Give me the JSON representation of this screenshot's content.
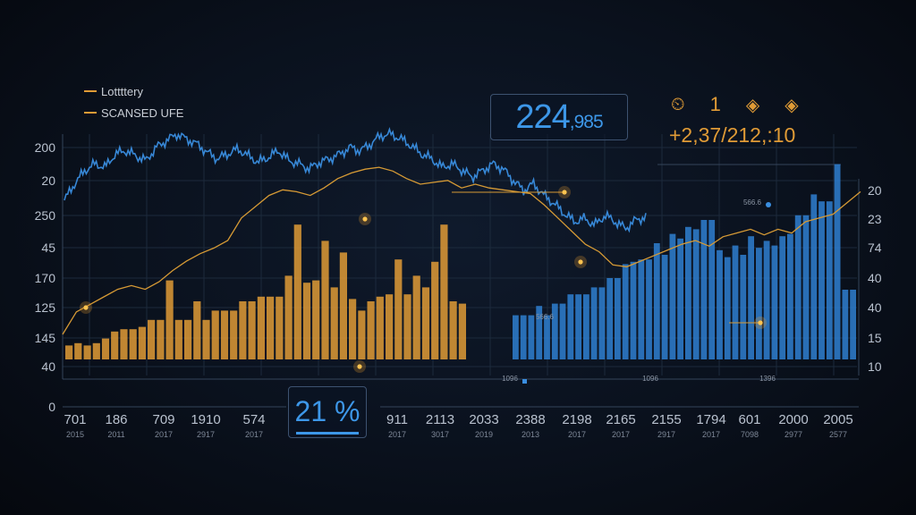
{
  "legend": [
    {
      "label": "Lottttery",
      "color": "#e09b36"
    },
    {
      "label": "SCANSED UFE",
      "color": "#e09b36"
    }
  ],
  "headline": {
    "main": "224",
    "suffix": ",985"
  },
  "top_icons": [
    {
      "icon": "timer-icon",
      "glyph": "⏲"
    },
    {
      "icon": "number-one",
      "glyph": "1"
    },
    {
      "icon": "diamond-chart-icon",
      "glyph": "◈"
    },
    {
      "icon": "diamond-percent-icon",
      "glyph": "◈"
    }
  ],
  "ratio_text": "+2,37/212,:10",
  "percent_box": "21 %",
  "colors": {
    "orange": "#e09b36",
    "blue": "#2f7fd0",
    "grid": "#1c2a3c"
  },
  "chart_data": {
    "type": "bar",
    "left_y_ticks": [
      "200",
      "20",
      "250",
      "45",
      "170",
      "125",
      "145",
      "40",
      "0"
    ],
    "right_y_ticks": [
      "20",
      "23",
      "74",
      "40",
      "40",
      "15",
      "10"
    ],
    "x_ticks": [
      {
        "top": "701",
        "bottom": "2015"
      },
      {
        "top": "186",
        "bottom": "2011"
      },
      {
        "top": "709",
        "bottom": "2017"
      },
      {
        "top": "1910",
        "bottom": "2917"
      },
      {
        "top": "574",
        "bottom": "2017"
      },
      {
        "top": "911",
        "bottom": "2017"
      },
      {
        "top": "2113",
        "bottom": "3017"
      },
      {
        "top": "2033",
        "bottom": "2019"
      },
      {
        "top": "2388",
        "bottom": "2013"
      },
      {
        "top": "2198",
        "bottom": "2017"
      },
      {
        "top": "2165",
        "bottom": "2017"
      },
      {
        "top": "2155",
        "bottom": "2917"
      },
      {
        "top": "1794",
        "bottom": "2017"
      },
      {
        "top": "601",
        "bottom": "7098"
      },
      {
        "top": "2000",
        "bottom": "2977"
      },
      {
        "top": "2005",
        "bottom": "2577"
      }
    ],
    "annotations": [
      "566.6",
      "566.6",
      "1096",
      "1096",
      "1396"
    ],
    "orange_bars": [
      0.06,
      0.07,
      0.06,
      0.07,
      0.09,
      0.12,
      0.13,
      0.13,
      0.14,
      0.17,
      0.17,
      0.34,
      0.17,
      0.17,
      0.25,
      0.17,
      0.21,
      0.21,
      0.21,
      0.25,
      0.25,
      0.27,
      0.27,
      0.27,
      0.36,
      0.58,
      0.33,
      0.34,
      0.51,
      0.31,
      0.46,
      0.26,
      0.21,
      0.25,
      0.27,
      0.28,
      0.43,
      0.28,
      0.36,
      0.31,
      0.42,
      0.58,
      0.25,
      0.24
    ],
    "blue_bars": [
      0.19,
      0.19,
      0.19,
      0.23,
      0.19,
      0.24,
      0.24,
      0.28,
      0.28,
      0.28,
      0.31,
      0.31,
      0.35,
      0.35,
      0.41,
      0.42,
      0.43,
      0.43,
      0.5,
      0.45,
      0.54,
      0.52,
      0.57,
      0.56,
      0.6,
      0.6,
      0.47,
      0.44,
      0.49,
      0.45,
      0.53,
      0.48,
      0.51,
      0.49,
      0.53,
      0.54,
      0.62,
      0.62,
      0.71,
      0.68,
      0.68,
      0.84,
      0.3,
      0.3
    ],
    "blue_line": [
      0.6,
      0.7,
      0.78,
      0.82,
      0.8,
      0.88,
      0.9,
      0.87,
      0.84,
      0.92,
      0.96,
      1.0,
      0.97,
      0.94,
      0.89,
      0.85,
      0.88,
      0.91,
      0.87,
      0.83,
      0.86,
      0.9,
      0.84,
      0.82,
      0.79,
      0.83,
      0.85,
      0.88,
      0.92,
      0.9,
      0.94,
      0.99,
      1.0,
      0.97,
      0.93,
      0.88,
      0.85,
      0.8,
      0.82,
      0.78,
      0.74,
      0.78,
      0.82,
      0.79,
      0.72,
      0.66,
      0.7,
      0.63,
      0.58,
      0.52,
      0.47,
      0.49,
      0.45,
      0.51,
      0.47,
      0.43,
      0.48,
      0.5
    ],
    "gold_line": [
      0.1,
      0.22,
      0.26,
      0.3,
      0.34,
      0.36,
      0.34,
      0.38,
      0.44,
      0.49,
      0.53,
      0.56,
      0.6,
      0.72,
      0.78,
      0.84,
      0.87,
      0.86,
      0.84,
      0.88,
      0.93,
      0.96,
      0.98,
      0.99,
      0.97,
      0.93,
      0.9,
      0.91,
      0.92,
      0.88,
      0.9,
      0.88,
      0.87,
      0.86,
      0.85,
      0.79,
      0.72,
      0.65,
      0.58,
      0.54,
      0.47,
      0.46,
      0.49,
      0.52,
      0.55,
      0.58,
      0.6,
      0.57,
      0.62,
      0.64,
      0.66,
      0.63,
      0.66,
      0.64,
      0.7,
      0.72,
      0.74,
      0.8,
      0.86
    ],
    "ylim": [
      0,
      1
    ]
  }
}
